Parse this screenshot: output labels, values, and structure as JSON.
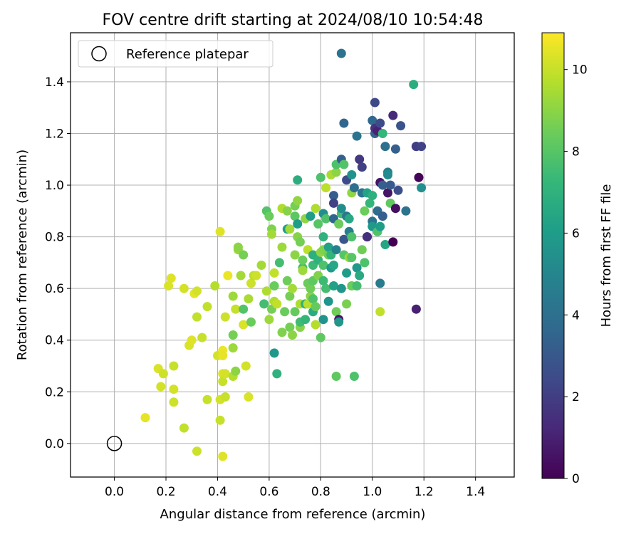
{
  "chart_data": {
    "type": "scatter",
    "title": "FOV centre drift starting at 2024/08/10 10:54:48",
    "xlabel": "Angular distance from reference (arcmin)",
    "ylabel": "Rotation from reference (arcmin)",
    "xlim": [
      -0.17,
      1.55
    ],
    "ylim": [
      -0.13,
      1.59
    ],
    "xticks": [
      0.0,
      0.2,
      0.4,
      0.6,
      0.8,
      1.0,
      1.2,
      1.4
    ],
    "xtick_labels": [
      "0.0",
      "0.2",
      "0.4",
      "0.6",
      "0.8",
      "1.0",
      "1.2",
      "1.4"
    ],
    "yticks": [
      0.0,
      0.2,
      0.4,
      0.6,
      0.8,
      1.0,
      1.2,
      1.4
    ],
    "ytick_labels": [
      "0.0",
      "0.2",
      "0.4",
      "0.6",
      "0.8",
      "1.0",
      "1.2",
      "1.4"
    ],
    "grid": true,
    "legend": {
      "position": "top-left",
      "entries": [
        {
          "label": "Reference platepar",
          "marker": "open-circle",
          "x": 0.0,
          "y": 0.0
        }
      ]
    },
    "colorbar": {
      "label": "Hours from first FF file",
      "colormap": "viridis",
      "range": [
        0,
        10.9
      ],
      "ticks": [
        0,
        2,
        4,
        6,
        8,
        10
      ],
      "tick_labels": [
        "0",
        "2",
        "4",
        "6",
        "8",
        "10"
      ]
    },
    "points": [
      [
        0.12,
        0.1,
        10.5
      ],
      [
        0.17,
        0.29,
        10.3
      ],
      [
        0.18,
        0.22,
        10.2
      ],
      [
        0.19,
        0.27,
        10.1
      ],
      [
        0.21,
        0.61,
        10.3
      ],
      [
        0.22,
        0.64,
        10.4
      ],
      [
        0.23,
        0.3,
        10.0
      ],
      [
        0.23,
        0.21,
        10.2
      ],
      [
        0.23,
        0.16,
        10.1
      ],
      [
        0.27,
        0.6,
        10.2
      ],
      [
        0.27,
        0.06,
        9.9
      ],
      [
        0.29,
        0.38,
        10.3
      ],
      [
        0.3,
        0.4,
        10.4
      ],
      [
        0.31,
        0.58,
        10.5
      ],
      [
        0.32,
        0.59,
        10.2
      ],
      [
        0.32,
        0.49,
        9.9
      ],
      [
        0.32,
        -0.03,
        10.1
      ],
      [
        0.34,
        0.41,
        10.0
      ],
      [
        0.36,
        0.53,
        9.9
      ],
      [
        0.36,
        0.17,
        10.0
      ],
      [
        0.39,
        0.61,
        9.7
      ],
      [
        0.4,
        0.34,
        10.2
      ],
      [
        0.41,
        0.82,
        10.4
      ],
      [
        0.41,
        0.17,
        10.2
      ],
      [
        0.41,
        0.09,
        10.0
      ],
      [
        0.42,
        0.36,
        10.6
      ],
      [
        0.42,
        0.34,
        10.5
      ],
      [
        0.42,
        0.27,
        10.3
      ],
      [
        0.42,
        0.24,
        10.0
      ],
      [
        0.42,
        -0.05,
        10.4
      ],
      [
        0.43,
        0.49,
        10.1
      ],
      [
        0.43,
        0.27,
        10.2
      ],
      [
        0.43,
        0.18,
        10.0
      ],
      [
        0.44,
        0.65,
        10.6
      ],
      [
        0.46,
        0.57,
        9.3
      ],
      [
        0.46,
        0.42,
        8.6
      ],
      [
        0.46,
        0.37,
        9.3
      ],
      [
        0.46,
        0.26,
        9.7
      ],
      [
        0.47,
        0.52,
        10.0
      ],
      [
        0.47,
        0.28,
        9.0
      ],
      [
        0.48,
        0.75,
        9.2
      ],
      [
        0.48,
        0.76,
        9.0
      ],
      [
        0.49,
        0.65,
        9.4
      ],
      [
        0.5,
        0.46,
        10.3
      ],
      [
        0.5,
        0.52,
        7.9
      ],
      [
        0.5,
        0.73,
        8.6
      ],
      [
        0.51,
        0.3,
        10.2
      ],
      [
        0.52,
        0.56,
        9.5
      ],
      [
        0.52,
        0.18,
        10.3
      ],
      [
        0.53,
        0.47,
        8.4
      ],
      [
        0.53,
        0.62,
        10.1
      ],
      [
        0.54,
        0.65,
        9.8
      ],
      [
        0.55,
        0.65,
        10.1
      ],
      [
        0.57,
        0.69,
        9.4
      ],
      [
        0.58,
        0.54,
        7.6
      ],
      [
        0.59,
        0.59,
        9.6
      ],
      [
        0.59,
        0.9,
        7.9
      ],
      [
        0.6,
        0.48,
        9.3
      ],
      [
        0.6,
        0.88,
        8.4
      ],
      [
        0.61,
        0.52,
        8.6
      ],
      [
        0.61,
        0.83,
        8.8
      ],
      [
        0.61,
        0.81,
        9.4
      ],
      [
        0.62,
        0.55,
        9.6
      ],
      [
        0.62,
        0.66,
        9.9
      ],
      [
        0.62,
        0.61,
        8.4
      ],
      [
        0.62,
        0.35,
        5.8
      ],
      [
        0.63,
        0.54,
        9.9
      ],
      [
        0.63,
        0.27,
        7.0
      ],
      [
        0.64,
        0.7,
        7.6
      ],
      [
        0.65,
        0.76,
        9.3
      ],
      [
        0.65,
        0.91,
        9.6
      ],
      [
        0.65,
        0.43,
        8.8
      ],
      [
        0.66,
        0.51,
        8.4
      ],
      [
        0.67,
        0.83,
        6.0
      ],
      [
        0.67,
        0.63,
        8.5
      ],
      [
        0.67,
        0.9,
        8.9
      ],
      [
        0.68,
        0.45,
        8.6
      ],
      [
        0.68,
        0.57,
        8.6
      ],
      [
        0.68,
        0.83,
        9.4
      ],
      [
        0.69,
        0.42,
        9.0
      ],
      [
        0.69,
        0.6,
        9.4
      ],
      [
        0.7,
        0.88,
        8.1
      ],
      [
        0.7,
        0.73,
        9.0
      ],
      [
        0.7,
        0.51,
        8.3
      ],
      [
        0.7,
        0.92,
        8.6
      ],
      [
        0.71,
        0.94,
        9.1
      ],
      [
        0.71,
        0.85,
        6.0
      ],
      [
        0.71,
        0.8,
        8.9
      ],
      [
        0.71,
        1.02,
        6.8
      ],
      [
        0.72,
        0.45,
        8.9
      ],
      [
        0.72,
        0.47,
        7.5
      ],
      [
        0.72,
        0.54,
        9.6
      ],
      [
        0.72,
        0.78,
        8.6
      ],
      [
        0.73,
        0.68,
        7.6
      ],
      [
        0.73,
        0.71,
        8.4
      ],
      [
        0.73,
        0.67,
        9.3
      ],
      [
        0.74,
        0.54,
        7.0
      ],
      [
        0.74,
        0.48,
        7.2
      ],
      [
        0.74,
        0.87,
        9.1
      ],
      [
        0.75,
        0.75,
        9.8
      ],
      [
        0.75,
        0.54,
        9.8
      ],
      [
        0.75,
        0.62,
        8.4
      ],
      [
        0.76,
        0.57,
        9.0
      ],
      [
        0.76,
        0.88,
        6.0
      ],
      [
        0.76,
        0.6,
        8.5
      ],
      [
        0.77,
        0.63,
        8.2
      ],
      [
        0.77,
        0.69,
        7.4
      ],
      [
        0.77,
        0.51,
        6.7
      ],
      [
        0.77,
        0.73,
        6.9
      ],
      [
        0.77,
        0.56,
        7.8
      ],
      [
        0.78,
        0.53,
        8.3
      ],
      [
        0.78,
        0.91,
        9.6
      ],
      [
        0.78,
        0.46,
        9.7
      ],
      [
        0.79,
        0.71,
        7.0
      ],
      [
        0.79,
        0.65,
        8.8
      ],
      [
        0.79,
        0.85,
        8.0
      ],
      [
        0.8,
        0.41,
        8.2
      ],
      [
        0.8,
        0.74,
        9.1
      ],
      [
        0.8,
        1.03,
        7.8
      ],
      [
        0.81,
        0.8,
        7.0
      ],
      [
        0.81,
        0.63,
        7.4
      ],
      [
        0.81,
        0.69,
        7.8
      ],
      [
        0.81,
        0.75,
        8.8
      ],
      [
        0.81,
        0.48,
        5.6
      ],
      [
        0.81,
        0.89,
        5.4
      ],
      [
        0.82,
        0.99,
        9.8
      ],
      [
        0.82,
        0.6,
        7.6
      ],
      [
        0.82,
        0.87,
        7.8
      ],
      [
        0.83,
        0.73,
        8.5
      ],
      [
        0.83,
        0.76,
        6.2
      ],
      [
        0.83,
        0.55,
        5.7
      ],
      [
        0.84,
        0.73,
        7.1
      ],
      [
        0.84,
        0.68,
        5.9
      ],
      [
        0.84,
        1.04,
        9.5
      ],
      [
        0.85,
        0.69,
        6.5
      ],
      [
        0.85,
        0.87,
        3.5
      ],
      [
        0.85,
        0.96,
        3.2
      ],
      [
        0.85,
        0.93,
        2.1
      ],
      [
        0.85,
        0.61,
        6.2
      ],
      [
        0.86,
        0.51,
        8.5
      ],
      [
        0.86,
        1.05,
        9.0
      ],
      [
        0.86,
        1.08,
        7.8
      ],
      [
        0.86,
        0.75,
        4.8
      ],
      [
        0.86,
        0.26,
        8.2
      ],
      [
        0.87,
        0.85,
        8.4
      ],
      [
        0.87,
        0.48,
        0.5
      ],
      [
        0.87,
        0.47,
        5.7
      ],
      [
        0.88,
        0.89,
        7.5
      ],
      [
        0.88,
        1.1,
        3.3
      ],
      [
        0.88,
        0.91,
        5.3
      ],
      [
        0.88,
        0.6,
        5.7
      ],
      [
        0.88,
        1.51,
        4.1
      ],
      [
        0.89,
        0.79,
        2.9
      ],
      [
        0.89,
        0.73,
        8.0
      ],
      [
        0.89,
        1.24,
        3.6
      ],
      [
        0.89,
        1.08,
        7.9
      ],
      [
        0.9,
        0.66,
        6.0
      ],
      [
        0.9,
        0.54,
        8.7
      ],
      [
        0.9,
        0.88,
        4.4
      ],
      [
        0.9,
        1.02,
        2.5
      ],
      [
        0.91,
        0.87,
        6.6
      ],
      [
        0.91,
        0.72,
        9.2
      ],
      [
        0.91,
        0.82,
        4.7
      ],
      [
        0.92,
        0.97,
        9.1
      ],
      [
        0.92,
        0.8,
        7.8
      ],
      [
        0.92,
        0.61,
        8.4
      ],
      [
        0.92,
        0.72,
        8.0
      ],
      [
        0.92,
        1.04,
        5.6
      ],
      [
        0.93,
        0.26,
        7.8
      ],
      [
        0.93,
        0.99,
        3.9
      ],
      [
        0.94,
        1.19,
        4.2
      ],
      [
        0.94,
        0.68,
        5.8
      ],
      [
        0.94,
        0.61,
        7.6
      ],
      [
        0.95,
        0.65,
        6.6
      ],
      [
        0.95,
        1.1,
        1.8
      ],
      [
        0.96,
        0.97,
        4.1
      ],
      [
        0.96,
        0.75,
        8.5
      ],
      [
        0.96,
        1.07,
        2.1
      ],
      [
        0.97,
        0.7,
        7.8
      ],
      [
        0.97,
        0.9,
        8.4
      ],
      [
        0.98,
        0.8,
        1.2
      ],
      [
        0.98,
        0.97,
        6.3
      ],
      [
        0.98,
        0.8,
        1.5
      ],
      [
        0.99,
        0.93,
        7.2
      ],
      [
        1.0,
        0.86,
        4.2
      ],
      [
        1.0,
        0.84,
        5.8
      ],
      [
        1.0,
        1.25,
        3.7
      ],
      [
        1.0,
        0.96,
        6.9
      ],
      [
        1.01,
        1.2,
        3.4
      ],
      [
        1.01,
        1.22,
        1.6
      ],
      [
        1.01,
        1.32,
        2.4
      ],
      [
        1.02,
        1.21,
        1.0
      ],
      [
        1.02,
        0.9,
        3.8
      ],
      [
        1.02,
        0.82,
        7.8
      ],
      [
        1.03,
        1.01,
        0.6
      ],
      [
        1.03,
        0.62,
        4.5
      ],
      [
        1.03,
        0.51,
        9.9
      ],
      [
        1.03,
        0.84,
        6.0
      ],
      [
        1.03,
        1.24,
        2.5
      ],
      [
        1.04,
        1.2,
        7.2
      ],
      [
        1.04,
        1.0,
        3.3
      ],
      [
        1.04,
        0.88,
        3.3
      ],
      [
        1.05,
        0.77,
        6.4
      ],
      [
        1.05,
        1.15,
        4.0
      ],
      [
        1.06,
        0.97,
        0.6
      ],
      [
        1.06,
        1.05,
        4.7
      ],
      [
        1.06,
        1.04,
        5.2
      ],
      [
        1.07,
        1.0,
        3.1
      ],
      [
        1.07,
        0.93,
        8.2
      ],
      [
        1.08,
        0.78,
        0.0
      ],
      [
        1.08,
        1.27,
        1.3
      ],
      [
        1.09,
        1.14,
        3.3
      ],
      [
        1.09,
        0.91,
        0.4
      ],
      [
        1.1,
        0.98,
        2.6
      ],
      [
        1.11,
        1.23,
        2.8
      ],
      [
        1.13,
        0.9,
        4.2
      ],
      [
        1.16,
        1.39,
        6.8
      ],
      [
        1.17,
        1.15,
        3.1
      ],
      [
        1.17,
        1.15,
        2.0
      ],
      [
        1.17,
        0.52,
        1.0
      ],
      [
        1.18,
        1.03,
        0.1
      ],
      [
        1.19,
        1.15,
        2.2
      ],
      [
        1.19,
        0.99,
        5.4
      ]
    ]
  }
}
